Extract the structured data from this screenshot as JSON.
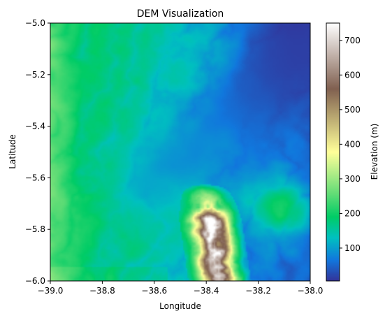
{
  "chart_data": {
    "type": "heatmap",
    "title": "DEM Visualization",
    "xlabel": "Longitude",
    "ylabel": "Latitude",
    "xlim": [
      -39.0,
      -38.0
    ],
    "ylim": [
      -6.0,
      -5.0
    ],
    "x_ticks": [
      -39.0,
      -38.8,
      -38.6,
      -38.4,
      -38.2,
      -38.0
    ],
    "x_tick_labels": [
      "−39.0",
      "−38.8",
      "−38.6",
      "−38.4",
      "−38.2",
      "−38.0"
    ],
    "y_ticks": [
      -5.0,
      -5.2,
      -5.4,
      -5.6,
      -5.8,
      -6.0
    ],
    "y_tick_labels": [
      "−5.0",
      "−5.2",
      "−5.4",
      "−5.6",
      "−5.8",
      "−6.0"
    ],
    "colorbar": {
      "label": "Elevation (m)",
      "colormap": "terrain",
      "range": [
        5,
        750
      ],
      "ticks": [
        100,
        200,
        300,
        400,
        500,
        600,
        700
      ],
      "tick_labels": [
        "100",
        "200",
        "300",
        "400",
        "500",
        "600",
        "700"
      ]
    },
    "colormap_stops": [
      {
        "value": 5,
        "color": "#333399"
      },
      {
        "value": 66,
        "color": "#1177dd"
      },
      {
        "value": 130,
        "color": "#00c0c0"
      },
      {
        "value": 190,
        "color": "#00cc66"
      },
      {
        "value": 260,
        "color": "#66dd77"
      },
      {
        "value": 377,
        "color": "#ffff99"
      },
      {
        "value": 560,
        "color": "#806050"
      },
      {
        "value": 750,
        "color": "#ffffff"
      }
    ],
    "features": {
      "valley": {
        "description_points": [
          {
            "lon": -38.0,
            "lat": -5.05,
            "elev": 10
          },
          {
            "lon": -38.1,
            "lat": -5.15,
            "elev": 25
          },
          {
            "lon": -38.25,
            "lat": -5.3,
            "elev": 50
          },
          {
            "lon": -38.4,
            "lat": -5.45,
            "elev": 80
          },
          {
            "lon": -38.6,
            "lat": -5.6,
            "elev": 110
          }
        ]
      },
      "west_highland": {
        "lon": -38.95,
        "lat": -5.4,
        "elev": 210
      },
      "ridge": {
        "lon_range": [
          -38.5,
          -38.3
        ],
        "lat_range": [
          -6.0,
          -5.65
        ],
        "peak_elev": 750
      },
      "southeast_hills": {
        "lon": -38.1,
        "lat": -5.7,
        "elev": 250
      },
      "no_data_color": "#ffffff"
    }
  }
}
